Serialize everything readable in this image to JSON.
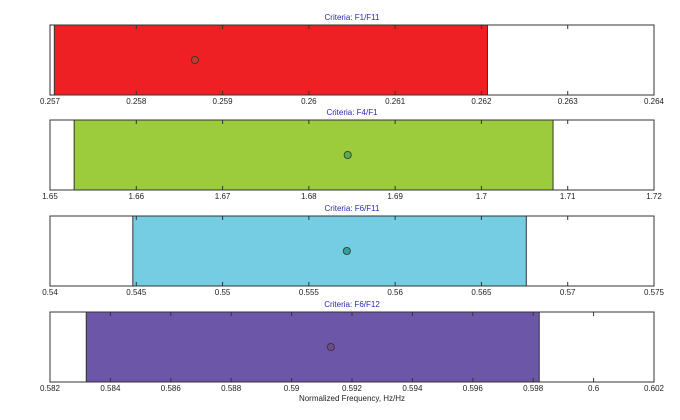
{
  "chart_data": [
    {
      "type": "bar",
      "title": "Criteria: F1/F11",
      "xlim": [
        0.257,
        0.264
      ],
      "ticks": [
        "0.257",
        "0.258",
        "0.259",
        "0.26",
        "0.261",
        "0.262",
        "0.263",
        "0.264"
      ],
      "tick_values": [
        0.257,
        0.258,
        0.259,
        0.26,
        0.261,
        0.262,
        0.263,
        0.264
      ],
      "range": [
        0.25705,
        0.26207
      ],
      "point": 0.25868,
      "bar_color": "#ee2024",
      "point_color": "#c0392b"
    },
    {
      "type": "bar",
      "title": "Criteria: F4/F1",
      "xlim": [
        1.65,
        1.72
      ],
      "ticks": [
        "1.65",
        "1.66",
        "1.67",
        "1.68",
        "1.69",
        "1.7",
        "1.71",
        "1.72"
      ],
      "tick_values": [
        1.65,
        1.66,
        1.67,
        1.68,
        1.69,
        1.7,
        1.71,
        1.72
      ],
      "range": [
        1.6528,
        1.7083
      ],
      "point": 1.6845,
      "bar_color": "#9ccb3b",
      "point_color": "#5aae4a"
    },
    {
      "type": "bar",
      "title": "Criteria: F6/F11",
      "xlim": [
        0.54,
        0.575
      ],
      "ticks": [
        "0.54",
        "0.545",
        "0.55",
        "0.555",
        "0.56",
        "0.565",
        "0.57",
        "0.575"
      ],
      "tick_values": [
        0.54,
        0.545,
        0.55,
        0.555,
        0.56,
        0.565,
        0.57,
        0.575
      ],
      "range": [
        0.5448,
        0.5676
      ],
      "point": 0.5572,
      "bar_color": "#74cde2",
      "point_color": "#2aa39a"
    },
    {
      "type": "bar",
      "title": "Criteria: F6/F12",
      "xlabel": "Normalized Frequency, Hz/Hz",
      "xlim": [
        0.582,
        0.602
      ],
      "ticks": [
        "0.582",
        "0.584",
        "0.586",
        "0.588",
        "0.59",
        "0.592",
        "0.594",
        "0.596",
        "0.598",
        "0.6",
        "0.602"
      ],
      "tick_values": [
        0.582,
        0.584,
        0.586,
        0.588,
        0.59,
        0.592,
        0.594,
        0.596,
        0.598,
        0.6,
        0.602
      ],
      "range": [
        0.5832,
        0.5982
      ],
      "point": 0.5913,
      "bar_color": "#6b56a7",
      "point_color": "#6b4a8e"
    }
  ]
}
